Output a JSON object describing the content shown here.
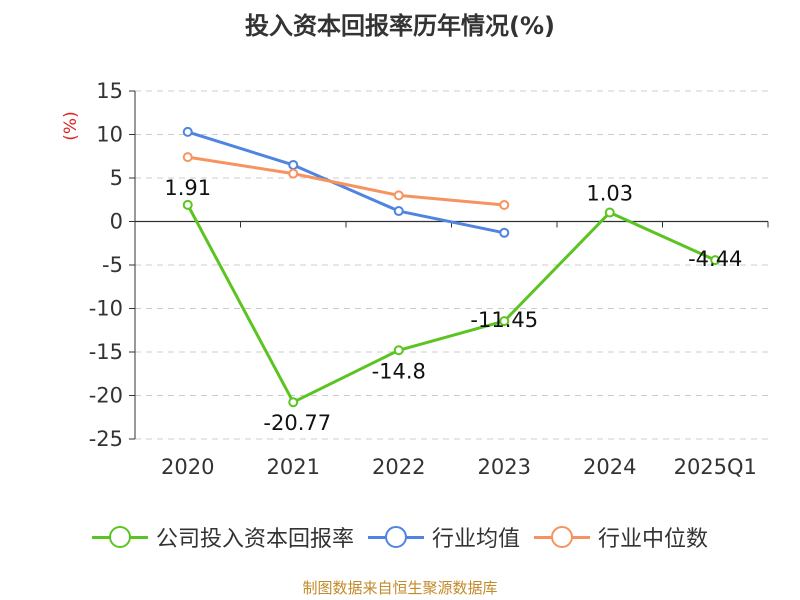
{
  "chart_data": {
    "type": "line",
    "title": "投入资本回报率历年情况(%)",
    "ylabel": "(%)",
    "categories": [
      "2020",
      "2021",
      "2022",
      "2023",
      "2024",
      "2025Q1"
    ],
    "ylim": [
      -25,
      15
    ],
    "yticks": [
      15,
      10,
      5,
      0,
      -5,
      -10,
      -15,
      -20,
      -25
    ],
    "grid": true,
    "legend_position": "bottom",
    "series": [
      {
        "name": "公司投入资本回报率",
        "color": "#5cc421",
        "values": [
          1.91,
          -20.77,
          -14.8,
          -11.45,
          1.03,
          -4.44
        ],
        "labels": [
          "1.91",
          "-20.77",
          "-14.8",
          "-11.45",
          "1.03",
          "-4.44"
        ],
        "show_labels": true
      },
      {
        "name": "行业均值",
        "color": "#4f84e0",
        "values": [
          10.3,
          6.5,
          1.2,
          -1.3,
          null,
          null
        ],
        "show_labels": false
      },
      {
        "name": "行业中位数",
        "color": "#f7935e",
        "values": [
          7.4,
          5.5,
          3.0,
          1.9,
          null,
          null
        ],
        "show_labels": false
      }
    ]
  },
  "footer": "制图数据来自恒生聚源数据库"
}
